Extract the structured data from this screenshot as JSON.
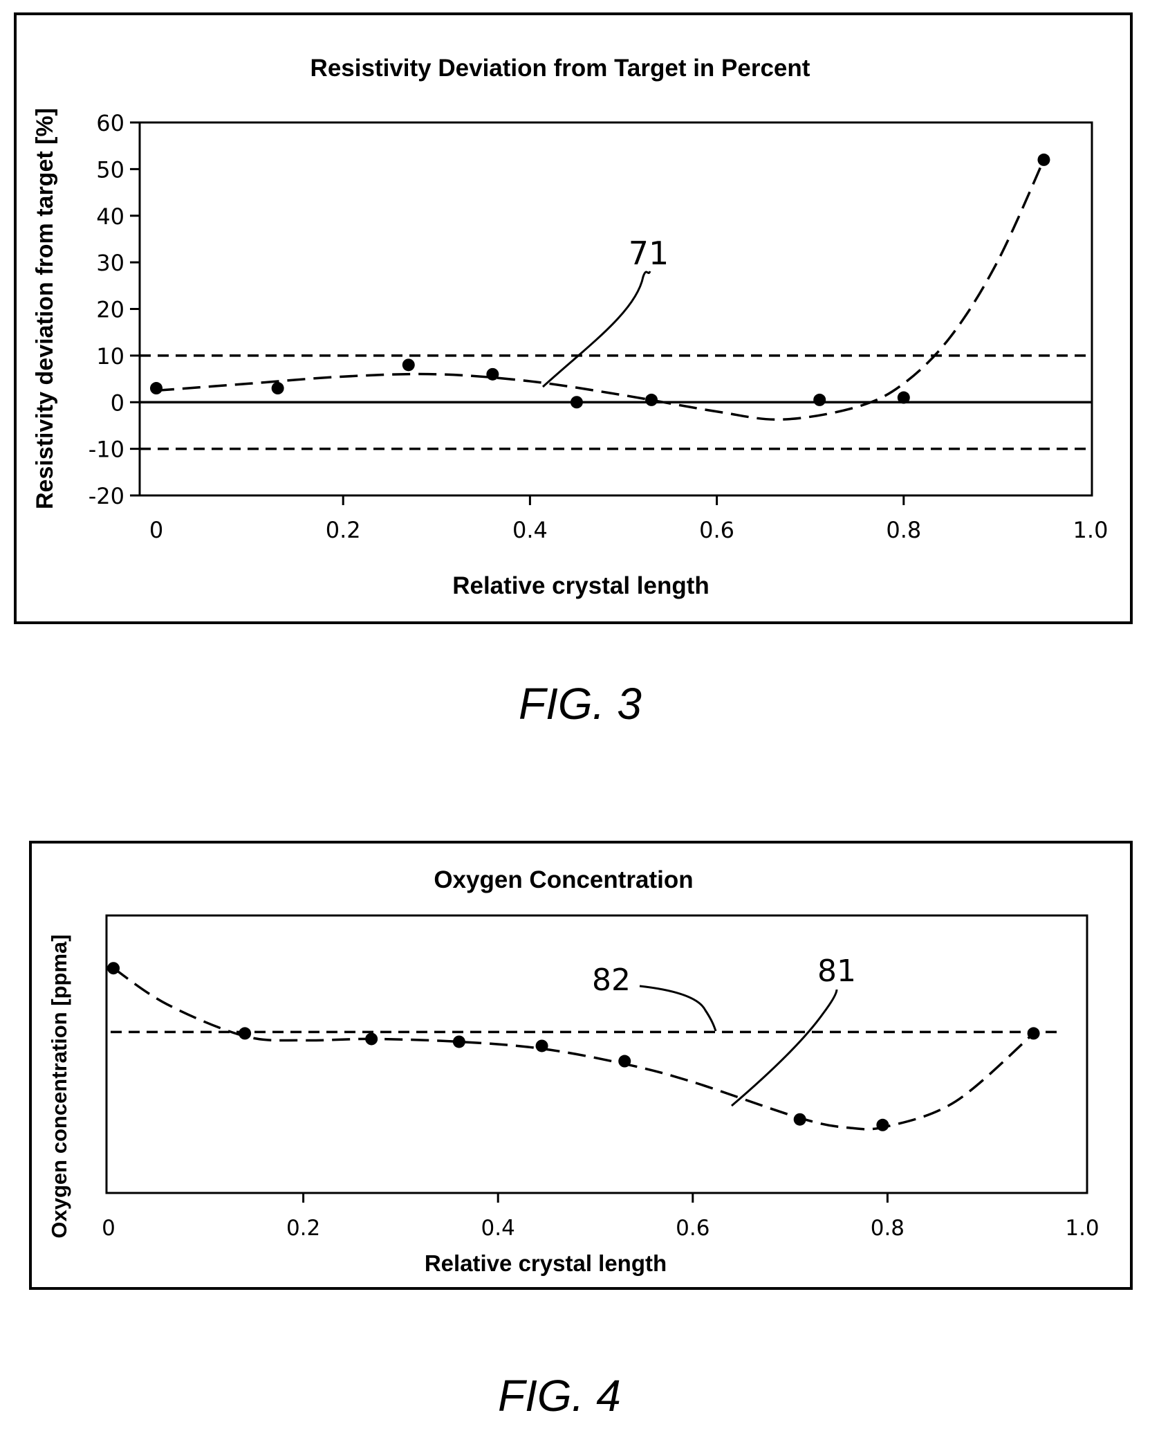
{
  "chart_data": [
    {
      "type": "scatter",
      "title": "Resistivity Deviation from Target in Percent",
      "xlabel": "Relative crystal length",
      "ylabel": "Resistivity deviation from target [%]",
      "xlim": [
        0,
        1.0
      ],
      "ylim": [
        -20,
        60
      ],
      "x_ticks": [
        "0",
        "0.2",
        "0.4",
        "0.6",
        "0.8",
        "1.0"
      ],
      "y_ticks": [
        "60",
        "50",
        "40",
        "30",
        "20",
        "10",
        "0",
        "-10",
        "-20"
      ],
      "grid": false,
      "series": [
        {
          "points": [
            {
              "x": 0.0,
              "y": 3
            },
            {
              "x": 0.13,
              "y": 3
            },
            {
              "x": 0.27,
              "y": 8
            },
            {
              "x": 0.36,
              "y": 6
            },
            {
              "x": 0.45,
              "y": 0
            },
            {
              "x": 0.53,
              "y": 0.5
            },
            {
              "x": 0.71,
              "y": 0.5
            },
            {
              "x": 0.8,
              "y": 1
            },
            {
              "x": 0.95,
              "y": 52
            }
          ],
          "fit_curve": [
            {
              "x": 0.0,
              "y": 2.5
            },
            {
              "x": 0.1,
              "y": 4
            },
            {
              "x": 0.2,
              "y": 5.5
            },
            {
              "x": 0.3,
              "y": 6
            },
            {
              "x": 0.4,
              "y": 4.5
            },
            {
              "x": 0.5,
              "y": 1.5
            },
            {
              "x": 0.6,
              "y": -2
            },
            {
              "x": 0.67,
              "y": -3.7
            },
            {
              "x": 0.75,
              "y": -1
            },
            {
              "x": 0.8,
              "y": 4
            },
            {
              "x": 0.85,
              "y": 14
            },
            {
              "x": 0.9,
              "y": 30
            },
            {
              "x": 0.95,
              "y": 52
            }
          ]
        }
      ],
      "reference_lines": [
        {
          "y": 10,
          "style": "dashed"
        },
        {
          "y": 0,
          "style": "solid"
        },
        {
          "y": -10,
          "style": "dashed"
        }
      ],
      "annotations": [
        {
          "text": "71",
          "points_to": {
            "x": 0.42,
            "y": 3.5
          }
        }
      ]
    },
    {
      "type": "scatter",
      "title": "Oxygen Concentration",
      "xlabel": "Relative crystal length",
      "ylabel": "Oxygen concentration [ppma]",
      "xlim": [
        0,
        1.0
      ],
      "ylim": [
        0,
        1
      ],
      "x_ticks": [
        "0",
        "0.2",
        "0.4",
        "0.6",
        "0.8",
        "1.0"
      ],
      "y_ticks": [],
      "grid": false,
      "series": [
        {
          "points": [
            {
              "x": 0.005,
              "y": 0.81
            },
            {
              "x": 0.14,
              "y": 0.575
            },
            {
              "x": 0.27,
              "y": 0.555
            },
            {
              "x": 0.36,
              "y": 0.545
            },
            {
              "x": 0.445,
              "y": 0.53
            },
            {
              "x": 0.53,
              "y": 0.475
            },
            {
              "x": 0.71,
              "y": 0.265
            },
            {
              "x": 0.795,
              "y": 0.245
            },
            {
              "x": 0.95,
              "y": 0.575
            }
          ],
          "fit_curve": [
            {
              "x": 0.005,
              "y": 0.81
            },
            {
              "x": 0.06,
              "y": 0.68
            },
            {
              "x": 0.14,
              "y": 0.565
            },
            {
              "x": 0.2,
              "y": 0.55
            },
            {
              "x": 0.27,
              "y": 0.555
            },
            {
              "x": 0.36,
              "y": 0.545
            },
            {
              "x": 0.445,
              "y": 0.52
            },
            {
              "x": 0.53,
              "y": 0.465
            },
            {
              "x": 0.6,
              "y": 0.4
            },
            {
              "x": 0.71,
              "y": 0.27
            },
            {
              "x": 0.76,
              "y": 0.235
            },
            {
              "x": 0.8,
              "y": 0.24
            },
            {
              "x": 0.87,
              "y": 0.33
            },
            {
              "x": 0.95,
              "y": 0.575
            }
          ]
        }
      ],
      "reference_lines": [
        {
          "y": 0.58,
          "style": "dashed",
          "label": "82"
        }
      ],
      "annotations": [
        {
          "text": "82",
          "points_to": {
            "x": 0.625,
            "y": 0.58
          }
        },
        {
          "text": "81",
          "points_to": {
            "x": 0.635,
            "y": 0.38
          }
        }
      ]
    }
  ],
  "captions": {
    "fig3": "FIG. 3",
    "fig4": "FIG. 4"
  },
  "colors": {
    "ink": "#000000",
    "background": "#ffffff"
  }
}
